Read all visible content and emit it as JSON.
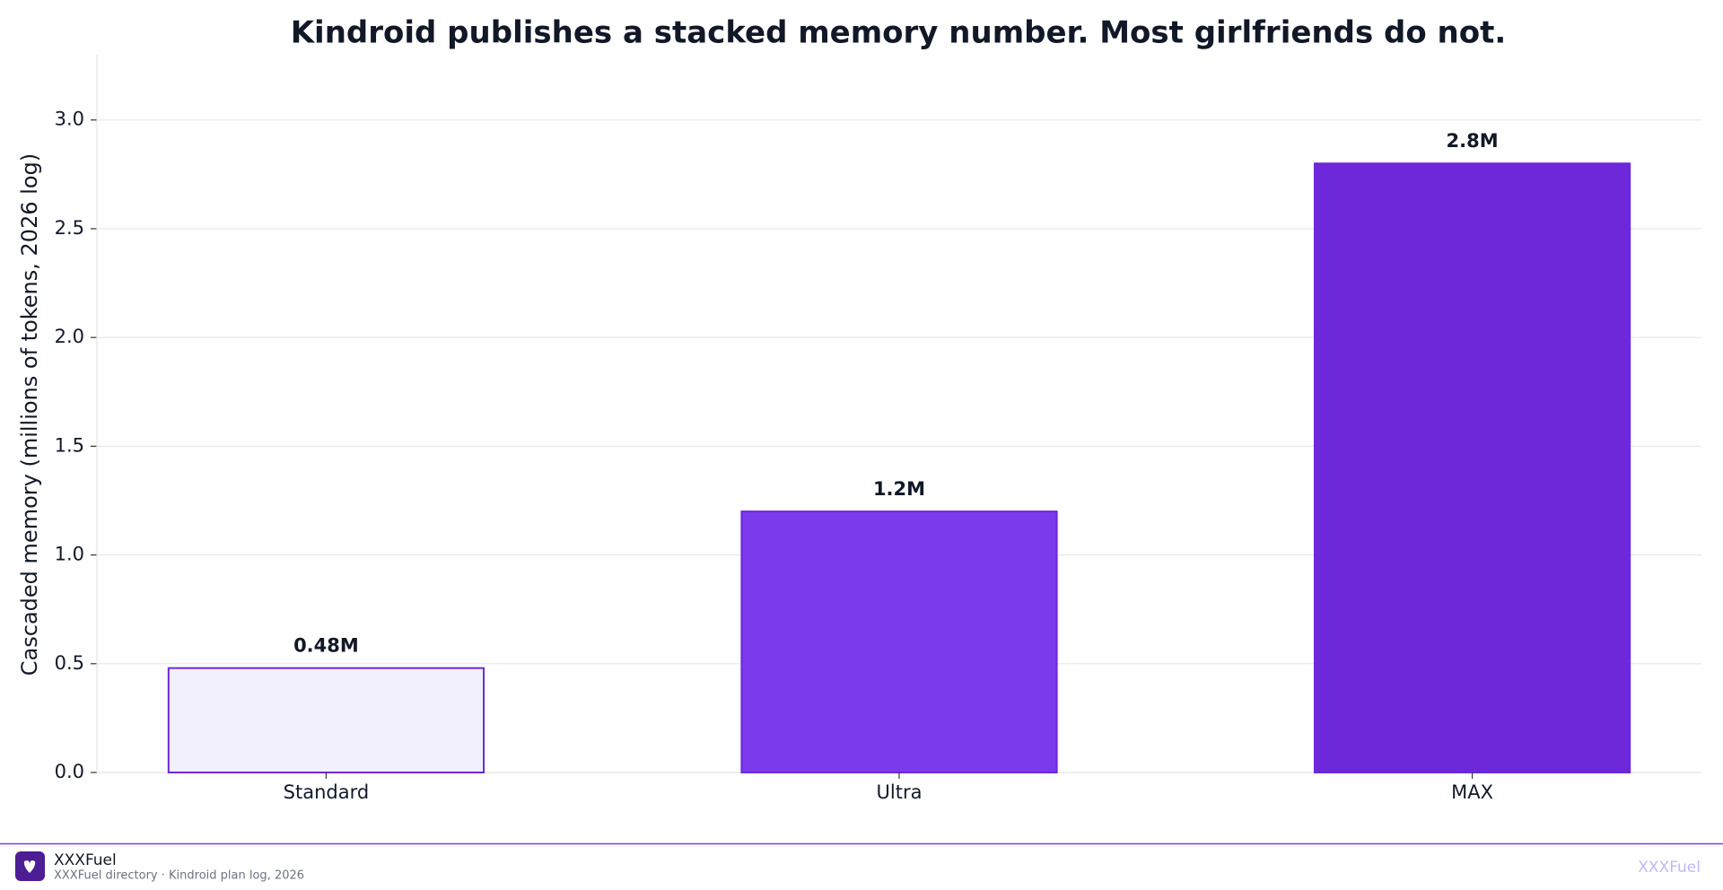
{
  "chart_data": {
    "type": "bar",
    "title": "Kindroid publishes a stacked memory number. Most girlfriends do not.",
    "y_label": "Cascaded memory (millions of tokens, 2026 log)",
    "categories": [
      "Standard",
      "Ultra",
      "MAX"
    ],
    "values": [
      0.48,
      1.2,
      2.8
    ],
    "value_labels": [
      "0.48M",
      "1.2M",
      "2.8M"
    ],
    "colors": [
      "#f3f0fd",
      "#7c3aed",
      "#6d28d9"
    ],
    "edgecolor": "#6d28d9",
    "ylim": [
      0,
      3.3
    ],
    "yticks": [
      {
        "value": 0,
        "label": "0.0"
      },
      {
        "value": 0.5,
        "label": "0.5"
      },
      {
        "value": 1,
        "label": "1.0"
      },
      {
        "value": 1.5,
        "label": "1.5"
      },
      {
        "value": 2,
        "label": "2.0"
      },
      {
        "value": 2.5,
        "label": "2.5"
      },
      {
        "value": 3,
        "label": "3.0"
      }
    ],
    "grid": true
  },
  "footer": {
    "brand": "XXXFuel",
    "source": "XXXFuel directory · Kindroid plan log, 2026",
    "watermark": "XXXFuel"
  }
}
